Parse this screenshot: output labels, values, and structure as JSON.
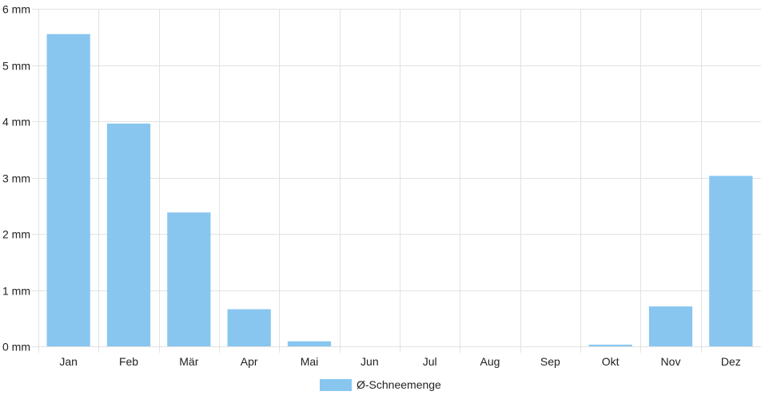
{
  "chart_data": {
    "type": "bar",
    "categories": [
      "Jan",
      "Feb",
      "Mär",
      "Apr",
      "Mai",
      "Jun",
      "Jul",
      "Aug",
      "Sep",
      "Okt",
      "Nov",
      "Dez"
    ],
    "series": [
      {
        "name": "Ø-Schneemenge",
        "values": [
          5.55,
          3.96,
          2.38,
          0.66,
          0.09,
          0,
          0,
          0,
          0,
          0.03,
          0.71,
          3.03
        ],
        "color": "#88c6f0"
      }
    ],
    "y_ticks": [
      "0 mm",
      "1 mm",
      "2 mm",
      "3 mm",
      "4 mm",
      "5 mm",
      "6 mm"
    ],
    "ylim": [
      0,
      6
    ],
    "grid": true,
    "legend_position": "bottom-center",
    "grid_color": "#e2e2e2"
  }
}
